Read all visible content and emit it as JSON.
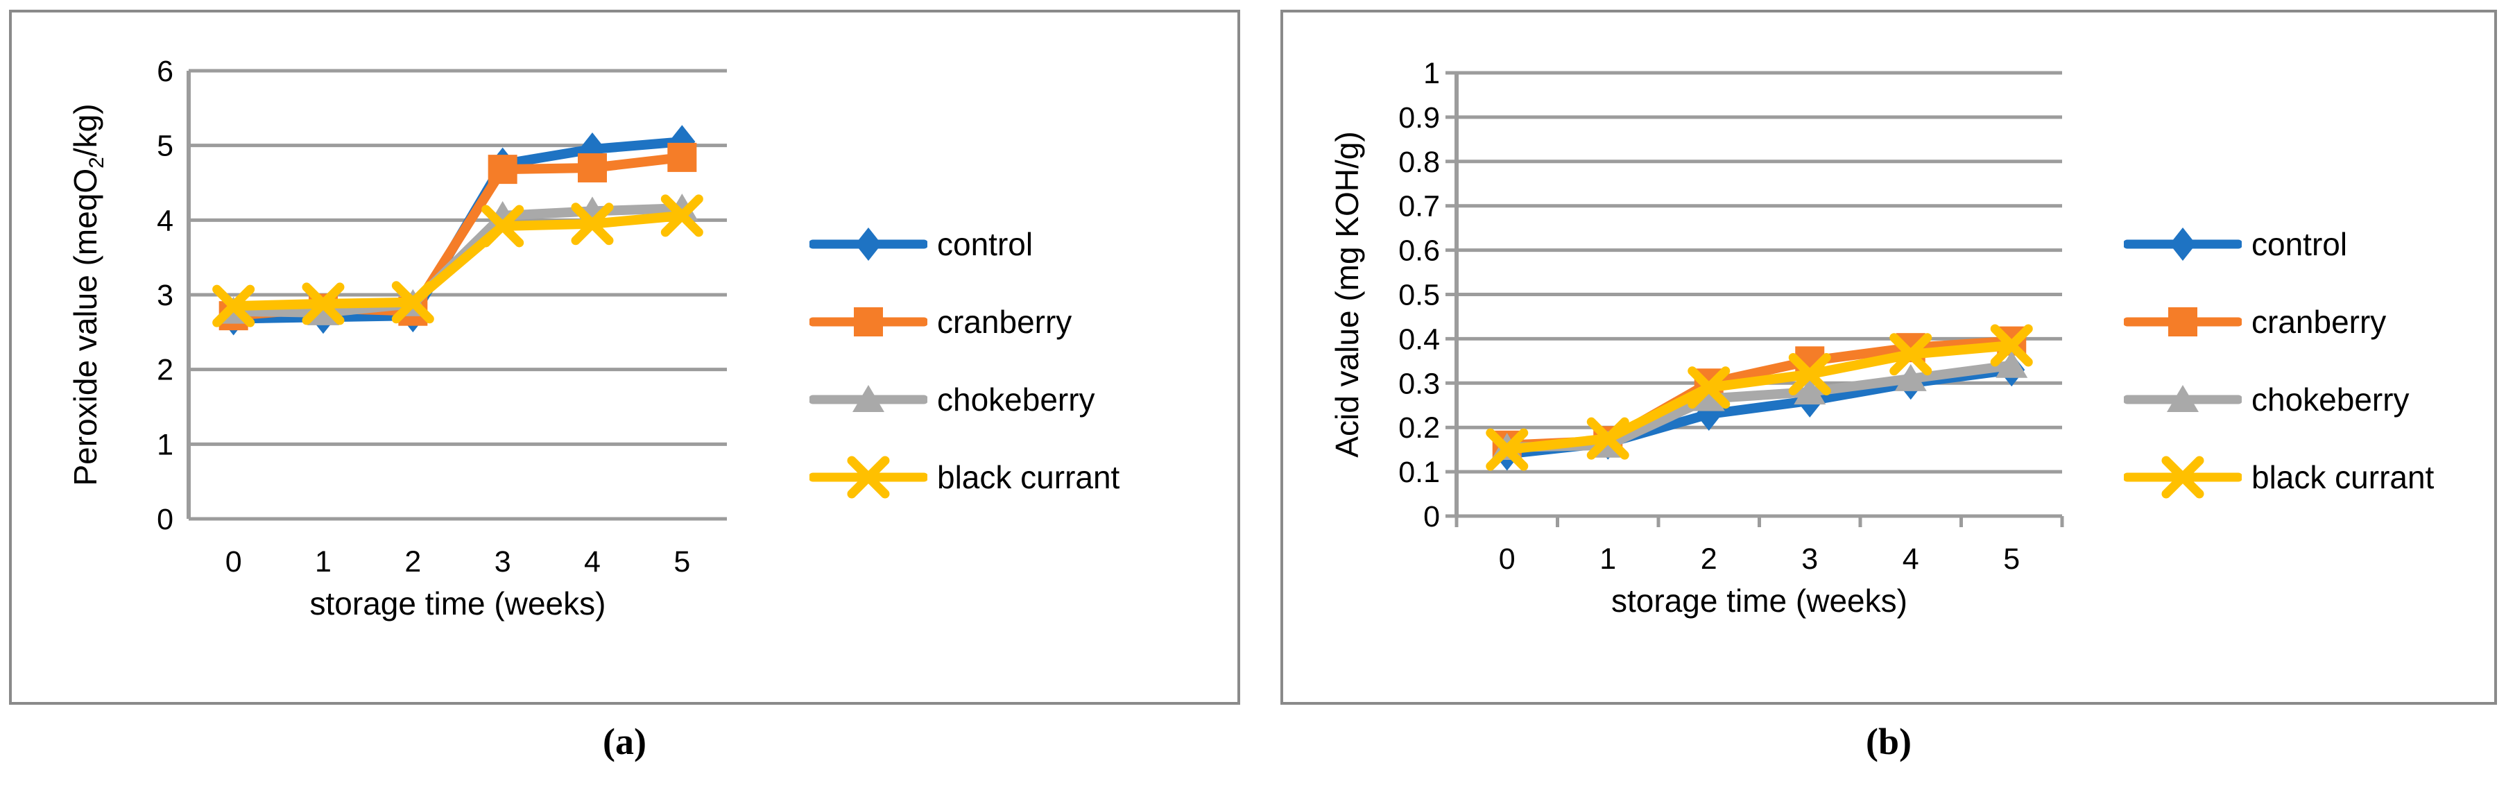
{
  "figure": {
    "caption_a": "(a)",
    "caption_b": "(b)"
  },
  "colors": {
    "control": "#1E73C3",
    "cranberry": "#F57D28",
    "chokeberry": "#A9A9A9",
    "black_currant": "#FFC000",
    "gridline": "#9C9C9C",
    "axis": "#9C9C9C",
    "panel_border": "#8A8A8A",
    "text": "#000000"
  },
  "chart_data": [
    {
      "panel": "a",
      "type": "line",
      "title": "",
      "xlabel": "storage time (weeks)",
      "ylabel_parts": [
        {
          "text": "Peroxide value (meqO",
          "sub": false
        },
        {
          "text": "2",
          "sub": true
        },
        {
          "text": "/kg)",
          "sub": false
        }
      ],
      "categories": [
        "0",
        "1",
        "2",
        "3",
        "4",
        "5"
      ],
      "y_ticks": [
        "0",
        "1",
        "2",
        "3",
        "4",
        "5",
        "6"
      ],
      "ylim": [
        0,
        6
      ],
      "grid": true,
      "legend_position": "right-outside",
      "series": [
        {
          "name": "control",
          "marker": "diamond",
          "color": "#1E73C3",
          "values": [
            2.68,
            2.7,
            2.72,
            4.75,
            4.95,
            5.05
          ]
        },
        {
          "name": "cranberry",
          "marker": "square",
          "color": "#F57D28",
          "values": [
            2.72,
            2.82,
            2.78,
            4.68,
            4.7,
            4.84
          ]
        },
        {
          "name": "chokeberry",
          "marker": "triangle",
          "color": "#A9A9A9",
          "values": [
            2.78,
            2.76,
            2.88,
            4.06,
            4.12,
            4.16
          ]
        },
        {
          "name": "black currant",
          "marker": "x",
          "color": "#FFC000",
          "values": [
            2.85,
            2.88,
            2.9,
            3.92,
            3.95,
            4.06
          ]
        }
      ]
    },
    {
      "panel": "b",
      "type": "line",
      "title": "",
      "xlabel": "storage time (weeks)",
      "ylabel_parts": [
        {
          "text": "Acid value (mg KOH/g)",
          "sub": false
        }
      ],
      "categories": [
        "0",
        "1",
        "2",
        "3",
        "4",
        "5"
      ],
      "y_ticks": [
        "0",
        "0.1",
        "0.2",
        "0.3",
        "0.4",
        "0.5",
        "0.6",
        "0.7",
        "0.8",
        "0.9",
        "1"
      ],
      "ylim": [
        0,
        1
      ],
      "grid": true,
      "legend_position": "right-outside",
      "series": [
        {
          "name": "control",
          "marker": "diamond",
          "color": "#1E73C3",
          "values": [
            0.14,
            0.165,
            0.23,
            0.26,
            0.3,
            0.33
          ]
        },
        {
          "name": "cranberry",
          "marker": "square",
          "color": "#F57D28",
          "values": [
            0.16,
            0.17,
            0.3,
            0.35,
            0.38,
            0.395
          ]
        },
        {
          "name": "chokeberry",
          "marker": "triangle",
          "color": "#A9A9A9",
          "values": [
            0.155,
            0.16,
            0.265,
            0.28,
            0.31,
            0.34
          ]
        },
        {
          "name": "black currant",
          "marker": "x",
          "color": "#FFC000",
          "values": [
            0.15,
            0.175,
            0.29,
            0.32,
            0.365,
            0.385
          ]
        }
      ]
    }
  ]
}
